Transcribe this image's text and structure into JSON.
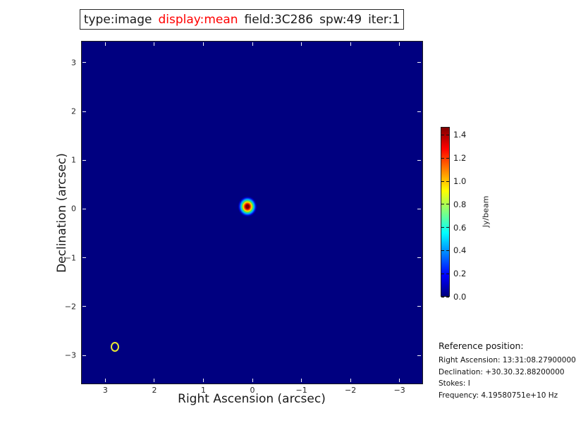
{
  "title": {
    "segments": [
      {
        "text": "type:image",
        "color": "#1a1a1a"
      },
      {
        "text": "display:mean",
        "color": "#ff0000"
      },
      {
        "text": "field:3C286",
        "color": "#1a1a1a"
      },
      {
        "text": "spw:49",
        "color": "#1a1a1a"
      },
      {
        "text": "iter:1",
        "color": "#1a1a1a"
      }
    ]
  },
  "chart_data": {
    "type": "heatmap",
    "colormap": "jet",
    "xlabel": "Right Ascension (arcsec)",
    "ylabel": "Declination (arcsec)",
    "xlim": [
      3.48,
      -3.45
    ],
    "ylim": [
      -3.56,
      3.43
    ],
    "xticks": [
      3,
      2,
      1,
      0,
      -1,
      -2,
      -3
    ],
    "yticks": [
      3,
      2,
      1,
      0,
      -1,
      -2,
      -3
    ],
    "background_value": 0.0,
    "background_color": "#000080",
    "source": {
      "ra_arcsec": 0.1,
      "dec_arcsec": 0.05,
      "peak_jy_per_beam": 1.47
    },
    "beam_marker": {
      "ra_arcsec": 2.81,
      "dec_arcsec": -2.82,
      "color": "#e8e832"
    },
    "colorbar": {
      "label": "Jy/beam",
      "vmin": 0.0,
      "vmax": 1.47,
      "ticks": [
        0.0,
        0.2,
        0.4,
        0.6,
        0.8,
        1.0,
        1.2,
        1.4
      ]
    }
  },
  "reference": {
    "heading": "Reference position:",
    "lines": [
      "Right Ascension: 13:31:08.27900000",
      "Declination: +30.30.32.88200000",
      "Stokes: I",
      "Frequency: 4.19580751e+10 Hz"
    ]
  }
}
